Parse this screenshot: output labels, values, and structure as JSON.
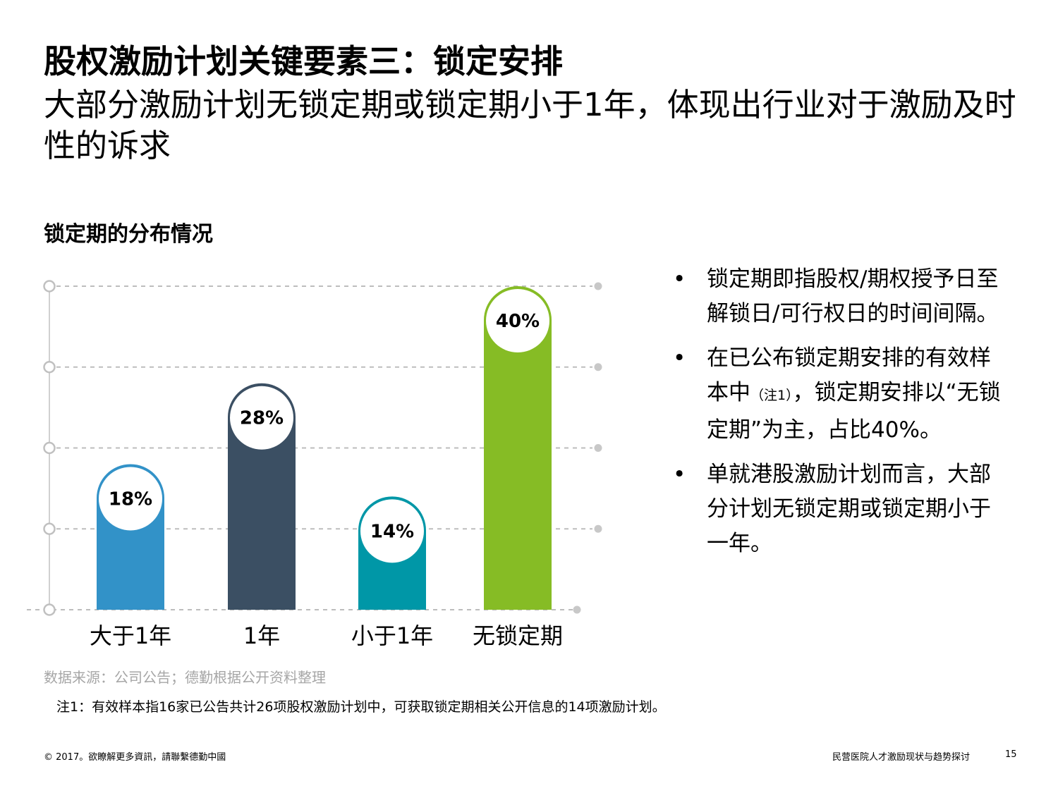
{
  "header": {
    "title": "股权激励计划关键要素三：锁定安排",
    "subtitle": "大部分激励计划无锁定期或锁定期小于1年，体现出行业对于激励及时性的诉求"
  },
  "chart_data": {
    "type": "bar",
    "title": "锁定期的分布情况",
    "categories": [
      "大于1年",
      "1年",
      "小于1年",
      "无锁定期"
    ],
    "values": [
      18,
      28,
      14,
      40
    ],
    "value_labels": [
      "18%",
      "28%",
      "14%",
      "40%"
    ],
    "colors": [
      "#3292C8",
      "#3B4F63",
      "#0097A7",
      "#86BC25"
    ],
    "ylim": [
      0,
      40
    ],
    "gridlines": 5,
    "xlabel": "",
    "ylabel": ""
  },
  "bullets": [
    {
      "text": "锁定期即指股权/期权授予日至解锁日/可行权日的时间间隔。"
    },
    {
      "text_before": "在已公布锁定期安排的有效样本中",
      "note": "（注1）",
      "text_after": "，锁定期安排以“无锁定期”为主，占比40%。"
    },
    {
      "text": "单就港股激励计划而言，大部分计划无锁定期或锁定期小于一年。"
    }
  ],
  "bullet_symbol": "•",
  "source": "数据来源：公司公告；德勤根据公开资料整理",
  "note": "注1：有效样本指16家已公告共计26项股权激励计划中，可获取锁定期相关公开信息的14项激励计划。",
  "footer": {
    "copyright": "© 2017。欲瞭解更多資訊，請聯繫德勤中國",
    "report_title": "民营医院人才激励现状与趋势探讨",
    "page_number": "15"
  }
}
